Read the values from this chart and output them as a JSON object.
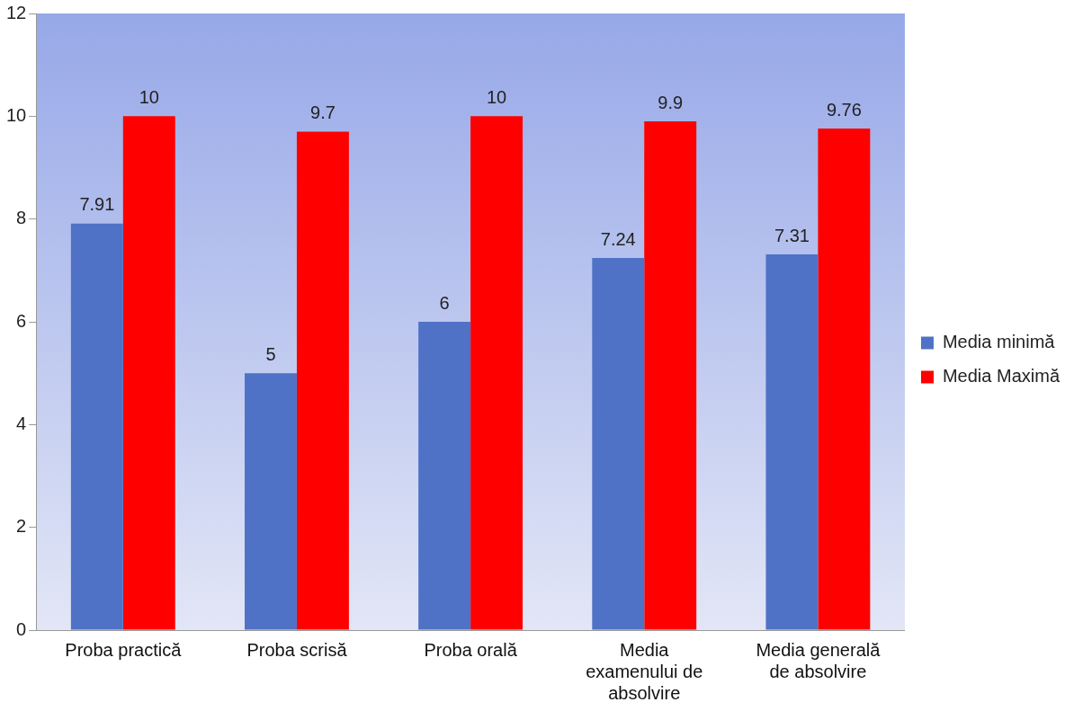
{
  "chart_data": {
    "type": "bar",
    "categories": [
      "Proba practică",
      "Proba scrisă",
      "Proba orală",
      "Media examenului de absolvire",
      "Media generală de absolvire"
    ],
    "series": [
      {
        "name": "Media minimă",
        "color": "#4f72c6",
        "values": [
          7.91,
          5,
          6,
          7.24,
          7.31
        ]
      },
      {
        "name": "Media Maximă",
        "color": "#ff0000",
        "values": [
          10,
          9.7,
          10,
          9.9,
          9.76
        ]
      }
    ],
    "ylim": [
      0,
      12
    ],
    "yticks": [
      0,
      2,
      4,
      6,
      8,
      10,
      12
    ],
    "grid": false,
    "legend": "right",
    "data_labels": true
  }
}
